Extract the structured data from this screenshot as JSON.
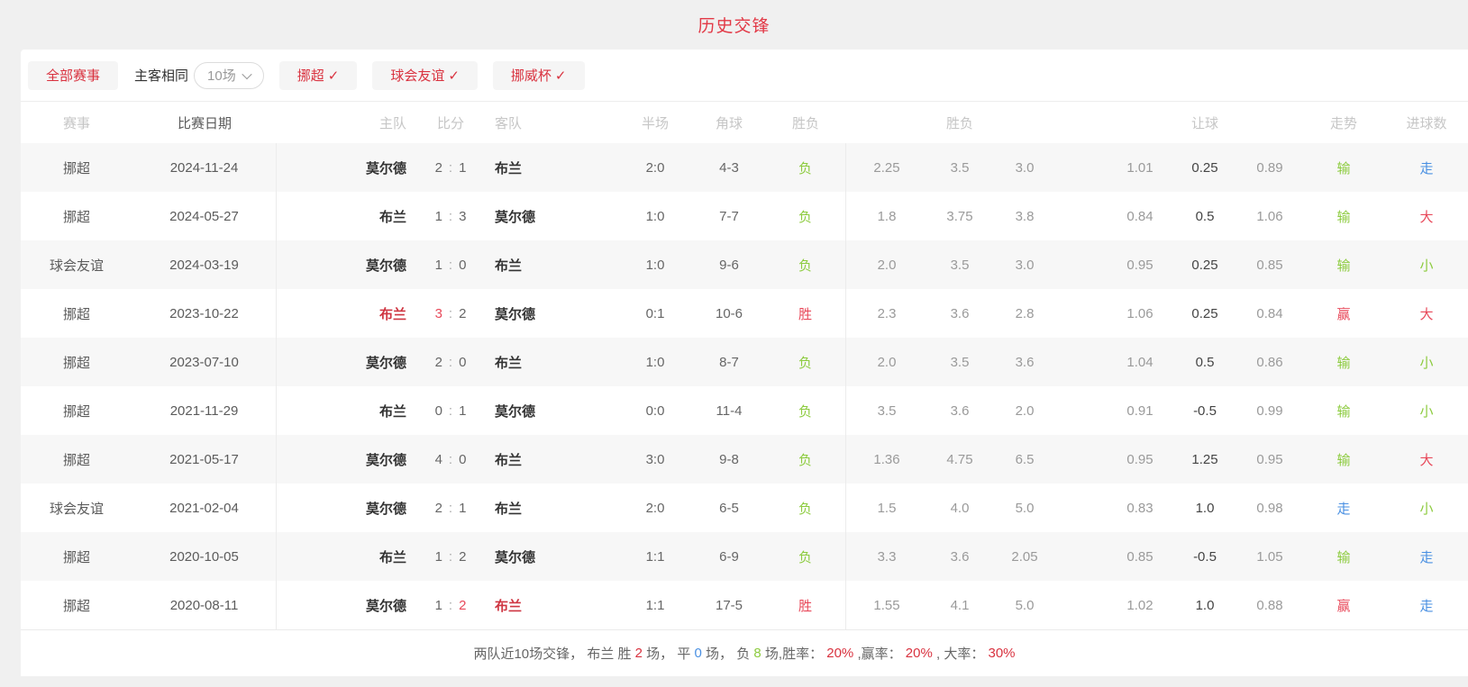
{
  "title": "历史交锋",
  "filters": {
    "all_events_label": "全部赛事",
    "same_venue_label": "主客相同",
    "count_dropdown_value": "10场",
    "check_glyph": "✓",
    "competitions": [
      {
        "label": "挪超"
      },
      {
        "label": "球会友谊"
      },
      {
        "label": "挪威杯"
      }
    ]
  },
  "table": {
    "headers": {
      "competition": "赛事",
      "date": "比赛日期",
      "home": "主队",
      "score": "比分",
      "away": "客队",
      "half": "半场",
      "corners": "角球",
      "result": "胜负",
      "odds_1x2": "胜负",
      "handicap": "让球",
      "trend": "走势",
      "goals": "进球数"
    },
    "rows": [
      {
        "competition": "挪超",
        "date": "2024-11-24",
        "home": "莫尔德",
        "home_highlight": false,
        "score_home": "2",
        "score_home_highlight": false,
        "score_away": "1",
        "score_away_highlight": false,
        "away": "布兰",
        "away_highlight": false,
        "half": "2:0",
        "corners": "4-3",
        "result": "负",
        "result_color": "green",
        "odds": [
          "2.25",
          "3.5",
          "3.0"
        ],
        "handicap": [
          "1.01",
          "0.25",
          "0.89"
        ],
        "trend": "输",
        "trend_color": "green",
        "goals": "走",
        "goals_color": "blue"
      },
      {
        "competition": "挪超",
        "date": "2024-05-27",
        "home": "布兰",
        "home_highlight": false,
        "score_home": "1",
        "score_home_highlight": false,
        "score_away": "3",
        "score_away_highlight": false,
        "away": "莫尔德",
        "away_highlight": false,
        "half": "1:0",
        "corners": "7-7",
        "result": "负",
        "result_color": "green",
        "odds": [
          "1.8",
          "3.75",
          "3.8"
        ],
        "handicap": [
          "0.84",
          "0.5",
          "1.06"
        ],
        "trend": "输",
        "trend_color": "green",
        "goals": "大",
        "goals_color": "red"
      },
      {
        "competition": "球会友谊",
        "date": "2024-03-19",
        "home": "莫尔德",
        "home_highlight": false,
        "score_home": "1",
        "score_home_highlight": false,
        "score_away": "0",
        "score_away_highlight": false,
        "away": "布兰",
        "away_highlight": false,
        "half": "1:0",
        "corners": "9-6",
        "result": "负",
        "result_color": "green",
        "odds": [
          "2.0",
          "3.5",
          "3.0"
        ],
        "handicap": [
          "0.95",
          "0.25",
          "0.85"
        ],
        "trend": "输",
        "trend_color": "green",
        "goals": "小",
        "goals_color": "green"
      },
      {
        "competition": "挪超",
        "date": "2023-10-22",
        "home": "布兰",
        "home_highlight": true,
        "score_home": "3",
        "score_home_highlight": true,
        "score_away": "2",
        "score_away_highlight": false,
        "away": "莫尔德",
        "away_highlight": false,
        "half": "0:1",
        "corners": "10-6",
        "result": "胜",
        "result_color": "red",
        "odds": [
          "2.3",
          "3.6",
          "2.8"
        ],
        "handicap": [
          "1.06",
          "0.25",
          "0.84"
        ],
        "trend": "赢",
        "trend_color": "red",
        "goals": "大",
        "goals_color": "red"
      },
      {
        "competition": "挪超",
        "date": "2023-07-10",
        "home": "莫尔德",
        "home_highlight": false,
        "score_home": "2",
        "score_home_highlight": false,
        "score_away": "0",
        "score_away_highlight": false,
        "away": "布兰",
        "away_highlight": false,
        "half": "1:0",
        "corners": "8-7",
        "result": "负",
        "result_color": "green",
        "odds": [
          "2.0",
          "3.5",
          "3.6"
        ],
        "handicap": [
          "1.04",
          "0.5",
          "0.86"
        ],
        "trend": "输",
        "trend_color": "green",
        "goals": "小",
        "goals_color": "green"
      },
      {
        "competition": "挪超",
        "date": "2021-11-29",
        "home": "布兰",
        "home_highlight": false,
        "score_home": "0",
        "score_home_highlight": false,
        "score_away": "1",
        "score_away_highlight": false,
        "away": "莫尔德",
        "away_highlight": false,
        "half": "0:0",
        "corners": "11-4",
        "result": "负",
        "result_color": "green",
        "odds": [
          "3.5",
          "3.6",
          "2.0"
        ],
        "handicap": [
          "0.91",
          "-0.5",
          "0.99"
        ],
        "trend": "输",
        "trend_color": "green",
        "goals": "小",
        "goals_color": "green"
      },
      {
        "competition": "挪超",
        "date": "2021-05-17",
        "home": "莫尔德",
        "home_highlight": false,
        "score_home": "4",
        "score_home_highlight": false,
        "score_away": "0",
        "score_away_highlight": false,
        "away": "布兰",
        "away_highlight": false,
        "half": "3:0",
        "corners": "9-8",
        "result": "负",
        "result_color": "green",
        "odds": [
          "1.36",
          "4.75",
          "6.5"
        ],
        "handicap": [
          "0.95",
          "1.25",
          "0.95"
        ],
        "trend": "输",
        "trend_color": "green",
        "goals": "大",
        "goals_color": "red"
      },
      {
        "competition": "球会友谊",
        "date": "2021-02-04",
        "home": "莫尔德",
        "home_highlight": false,
        "score_home": "2",
        "score_home_highlight": false,
        "score_away": "1",
        "score_away_highlight": false,
        "away": "布兰",
        "away_highlight": false,
        "half": "2:0",
        "corners": "6-5",
        "result": "负",
        "result_color": "green",
        "odds": [
          "1.5",
          "4.0",
          "5.0"
        ],
        "handicap": [
          "0.83",
          "1.0",
          "0.98"
        ],
        "trend": "走",
        "trend_color": "blue",
        "goals": "小",
        "goals_color": "green"
      },
      {
        "competition": "挪超",
        "date": "2020-10-05",
        "home": "布兰",
        "home_highlight": false,
        "score_home": "1",
        "score_home_highlight": false,
        "score_away": "2",
        "score_away_highlight": false,
        "away": "莫尔德",
        "away_highlight": false,
        "half": "1:1",
        "corners": "6-9",
        "result": "负",
        "result_color": "green",
        "odds": [
          "3.3",
          "3.6",
          "2.05"
        ],
        "handicap": [
          "0.85",
          "-0.5",
          "1.05"
        ],
        "trend": "输",
        "trend_color": "green",
        "goals": "走",
        "goals_color": "blue"
      },
      {
        "competition": "挪超",
        "date": "2020-08-11",
        "home": "莫尔德",
        "home_highlight": false,
        "score_home": "1",
        "score_home_highlight": false,
        "score_away": "2",
        "score_away_highlight": true,
        "away": "布兰",
        "away_highlight": true,
        "half": "1:1",
        "corners": "17-5",
        "result": "胜",
        "result_color": "red",
        "odds": [
          "1.55",
          "4.1",
          "5.0"
        ],
        "handicap": [
          "1.02",
          "1.0",
          "0.88"
        ],
        "trend": "赢",
        "trend_color": "red",
        "goals": "走",
        "goals_color": "blue"
      }
    ]
  },
  "summary": {
    "segments": [
      {
        "text": "两队近10场交锋， 布兰 胜 ",
        "color": "default"
      },
      {
        "text": "2",
        "color": "red"
      },
      {
        "text": " 场， 平 ",
        "color": "default"
      },
      {
        "text": "0",
        "color": "blue"
      },
      {
        "text": " 场， 负 ",
        "color": "default"
      },
      {
        "text": "8",
        "color": "green"
      },
      {
        "text": " 场,胜率： ",
        "color": "default"
      },
      {
        "text": "20%",
        "color": "red"
      },
      {
        "text": " ,赢率： ",
        "color": "default"
      },
      {
        "text": "20%",
        "color": "red"
      },
      {
        "text": " , 大率： ",
        "color": "default"
      },
      {
        "text": "30%",
        "color": "red"
      }
    ]
  },
  "colors": {
    "accent_red": "#d9323f",
    "title_red": "#e23946",
    "win_red": "#e8495a",
    "loss_green": "#8ccb3e",
    "neutral_blue": "#4a90e2"
  }
}
